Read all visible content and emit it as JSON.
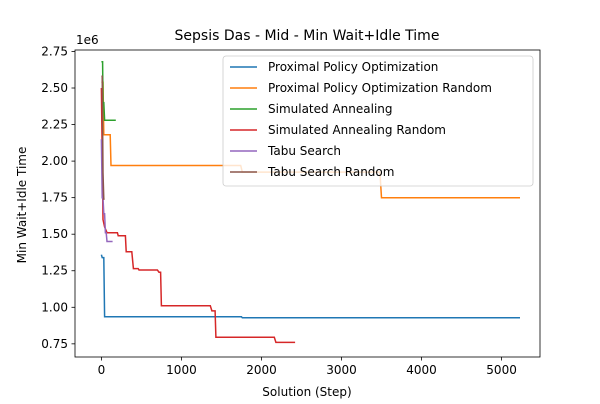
{
  "chart_data": {
    "type": "line",
    "title": "Sepsis Das - Mid - Min Wait+Idle Time",
    "xlabel": "Solution (Step)",
    "ylabel": "Min Wait+Idle Time",
    "y_offset_label": "1e6",
    "xlim": [
      -330,
      5480
    ],
    "ylim": [
      660000,
      2760000
    ],
    "x_ticks": [
      0,
      1000,
      2000,
      3000,
      4000,
      5000
    ],
    "x_tick_labels": [
      "0",
      "1000",
      "2000",
      "3000",
      "4000",
      "5000"
    ],
    "y_ticks": [
      750000,
      1000000,
      1250000,
      1500000,
      1750000,
      2000000,
      2250000,
      2500000,
      2750000
    ],
    "y_tick_labels": [
      "0.75",
      "1.00",
      "1.25",
      "1.50",
      "1.75",
      "2.00",
      "2.25",
      "2.50",
      "2.75"
    ],
    "grid": false,
    "legend_position": "top-right",
    "series": [
      {
        "name": "Proximal Policy Optimization",
        "color": "#1f77b4",
        "points": [
          [
            0,
            1360000
          ],
          [
            10,
            1340000
          ],
          [
            30,
            1340000
          ],
          [
            40,
            935000
          ],
          [
            1750,
            935000
          ],
          [
            1760,
            928000
          ],
          [
            5230,
            928000
          ]
        ]
      },
      {
        "name": "Proximal Policy Optimization Random",
        "color": "#ff7f0e",
        "points": [
          [
            0,
            2540000
          ],
          [
            20,
            2540000
          ],
          [
            30,
            2180000
          ],
          [
            110,
            2180000
          ],
          [
            120,
            1970000
          ],
          [
            1740,
            1970000
          ],
          [
            1760,
            1925000
          ],
          [
            3480,
            1925000
          ],
          [
            3500,
            1750000
          ],
          [
            5230,
            1750000
          ]
        ]
      },
      {
        "name": "Simulated Annealing",
        "color": "#2ca02c",
        "points": [
          [
            0,
            2680000
          ],
          [
            15,
            2680000
          ],
          [
            20,
            2400000
          ],
          [
            30,
            2400000
          ],
          [
            40,
            2280000
          ],
          [
            180,
            2280000
          ]
        ]
      },
      {
        "name": "Simulated Annealing Random",
        "color": "#d62728",
        "points": [
          [
            0,
            2500000
          ],
          [
            20,
            1600000
          ],
          [
            40,
            1550000
          ],
          [
            70,
            1510000
          ],
          [
            200,
            1510000
          ],
          [
            210,
            1490000
          ],
          [
            300,
            1490000
          ],
          [
            310,
            1380000
          ],
          [
            380,
            1380000
          ],
          [
            400,
            1265000
          ],
          [
            460,
            1265000
          ],
          [
            470,
            1255000
          ],
          [
            700,
            1255000
          ],
          [
            720,
            1240000
          ],
          [
            740,
            1240000
          ],
          [
            750,
            1010000
          ],
          [
            1360,
            1010000
          ],
          [
            1380,
            975000
          ],
          [
            1420,
            975000
          ],
          [
            1430,
            795000
          ],
          [
            2160,
            795000
          ],
          [
            2180,
            760000
          ],
          [
            2420,
            760000
          ]
        ]
      },
      {
        "name": "Tabu Search",
        "color": "#9467bd",
        "points": [
          [
            0,
            2150000
          ],
          [
            10,
            1750000
          ],
          [
            20,
            1750000
          ],
          [
            30,
            1640000
          ],
          [
            40,
            1640000
          ],
          [
            50,
            1510000
          ],
          [
            60,
            1510000
          ],
          [
            70,
            1450000
          ],
          [
            140,
            1450000
          ]
        ]
      },
      {
        "name": "Tabu Search Random",
        "color": "#8c564b",
        "points": [
          [
            0,
            2580000
          ],
          [
            10,
            2580000
          ],
          [
            20,
            1920000
          ],
          [
            30,
            1740000
          ],
          [
            40,
            1740000
          ]
        ]
      }
    ]
  }
}
